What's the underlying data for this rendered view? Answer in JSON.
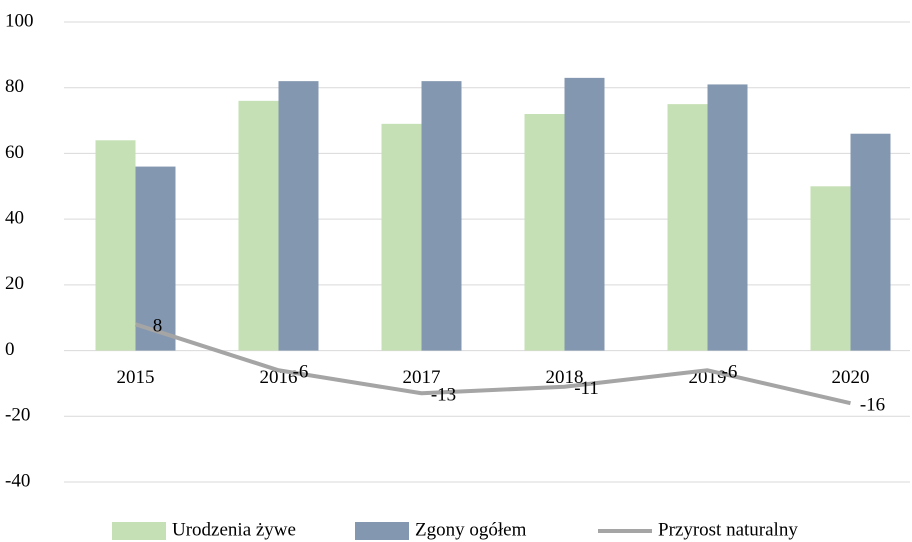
{
  "chart_data": {
    "type": "bar-line",
    "categories": [
      "2015",
      "2016",
      "2017",
      "2018",
      "2019",
      "2020"
    ],
    "series": [
      {
        "name": "Urodzenia żywe",
        "type": "bar",
        "color": "#c5e0b4",
        "values": [
          64,
          76,
          69,
          72,
          75,
          50
        ]
      },
      {
        "name": "Zgony ogółem",
        "type": "bar",
        "color": "#8497b0",
        "values": [
          56,
          82,
          82,
          83,
          81,
          66
        ]
      },
      {
        "name": "Przyrost naturalny",
        "type": "line",
        "color": "#a5a5a5",
        "values": [
          8,
          -6,
          -13,
          -11,
          -6,
          -16
        ],
        "data_labels": true
      }
    ],
    "ylim": [
      -40,
      100
    ],
    "yticks": [
      -40,
      -20,
      0,
      20,
      40,
      60,
      80,
      100
    ],
    "grid": true,
    "legend": "bottom"
  }
}
